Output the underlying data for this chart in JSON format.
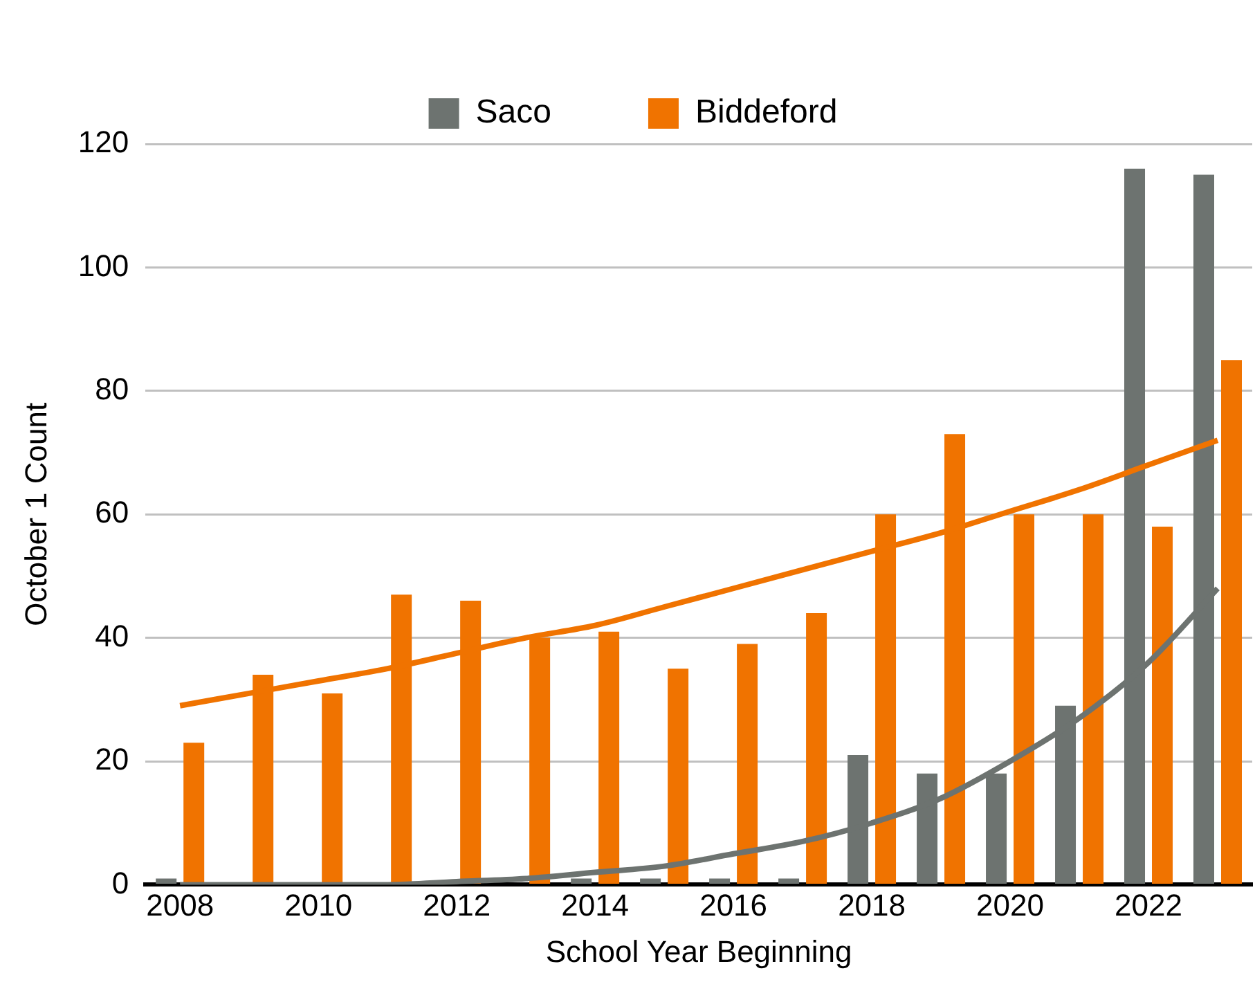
{
  "chart_data": {
    "type": "bar",
    "xlabel": "School Year Beginning",
    "ylabel": "October 1 Count",
    "categories": [
      "2008",
      null,
      "2010",
      null,
      "2012",
      null,
      "2014",
      null,
      "2016",
      null,
      "2018",
      null,
      "2020",
      null,
      "2022",
      null
    ],
    "series": [
      {
        "name": "Saco",
        "color": "#6d7370",
        "values": [
          1,
          0,
          0,
          0,
          0,
          0,
          1,
          1,
          1,
          1,
          21,
          18,
          18,
          29,
          116,
          115
        ]
      },
      {
        "name": "Biddeford",
        "color": "#f07300",
        "values": [
          23,
          34,
          31,
          47,
          46,
          40,
          41,
          35,
          39,
          44,
          60,
          73,
          60,
          60,
          58,
          85
        ]
      },
      {
        "type": "line",
        "color": "#f07300",
        "values": [
          29,
          31,
          33,
          35,
          37.5,
          40,
          42,
          45,
          48,
          51,
          54,
          57,
          60.5,
          64,
          68,
          72
        ]
      },
      {
        "type": "line",
        "color": "#6d7370",
        "values": [
          0,
          0,
          0,
          0,
          0.5,
          1,
          2,
          3,
          5,
          7,
          10,
          14,
          20,
          27,
          36,
          48
        ]
      }
    ],
    "ylim": [
      0,
      120
    ],
    "yticks": [
      0,
      20,
      40,
      60,
      80,
      100,
      120
    ],
    "grid": "y",
    "legend": "top",
    "marker": "none"
  }
}
